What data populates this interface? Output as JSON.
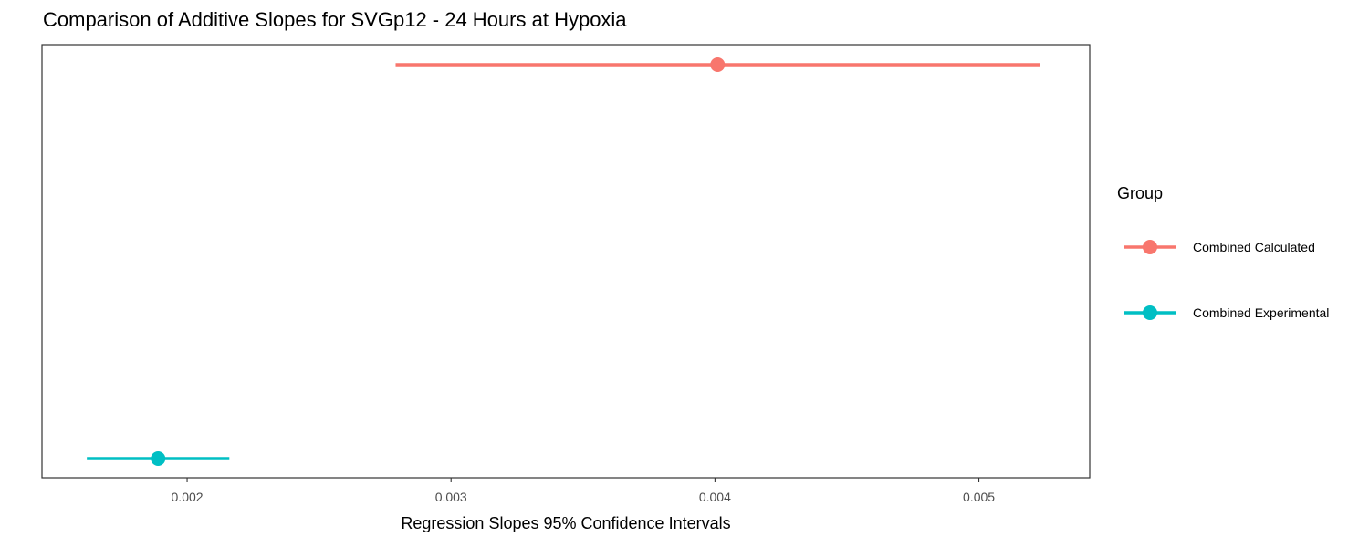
{
  "chart_data": {
    "type": "errorbar",
    "title": "Comparison of Additive Slopes for SVGp12 - 24 Hours at Hypoxia",
    "xlabel": "Regression Slopes 95% Confidence Intervals",
    "ylabel": "",
    "xlim": [
      0.00145,
      0.00542
    ],
    "x_ticks": [
      0.002,
      0.003,
      0.004,
      0.005
    ],
    "x_tick_labels": [
      "0.002",
      "0.003",
      "0.004",
      "0.005"
    ],
    "grid": false,
    "legend": {
      "title": "Group",
      "placement": "right"
    },
    "series": [
      {
        "name": "Combined Calculated",
        "color": "#F8766D",
        "estimate": 0.00401,
        "lower": 0.00279,
        "upper": 0.00523
      },
      {
        "name": "Combined Experimental",
        "color": "#00BFC4",
        "estimate": 0.00189,
        "lower": 0.00162,
        "upper": 0.00216
      }
    ]
  }
}
